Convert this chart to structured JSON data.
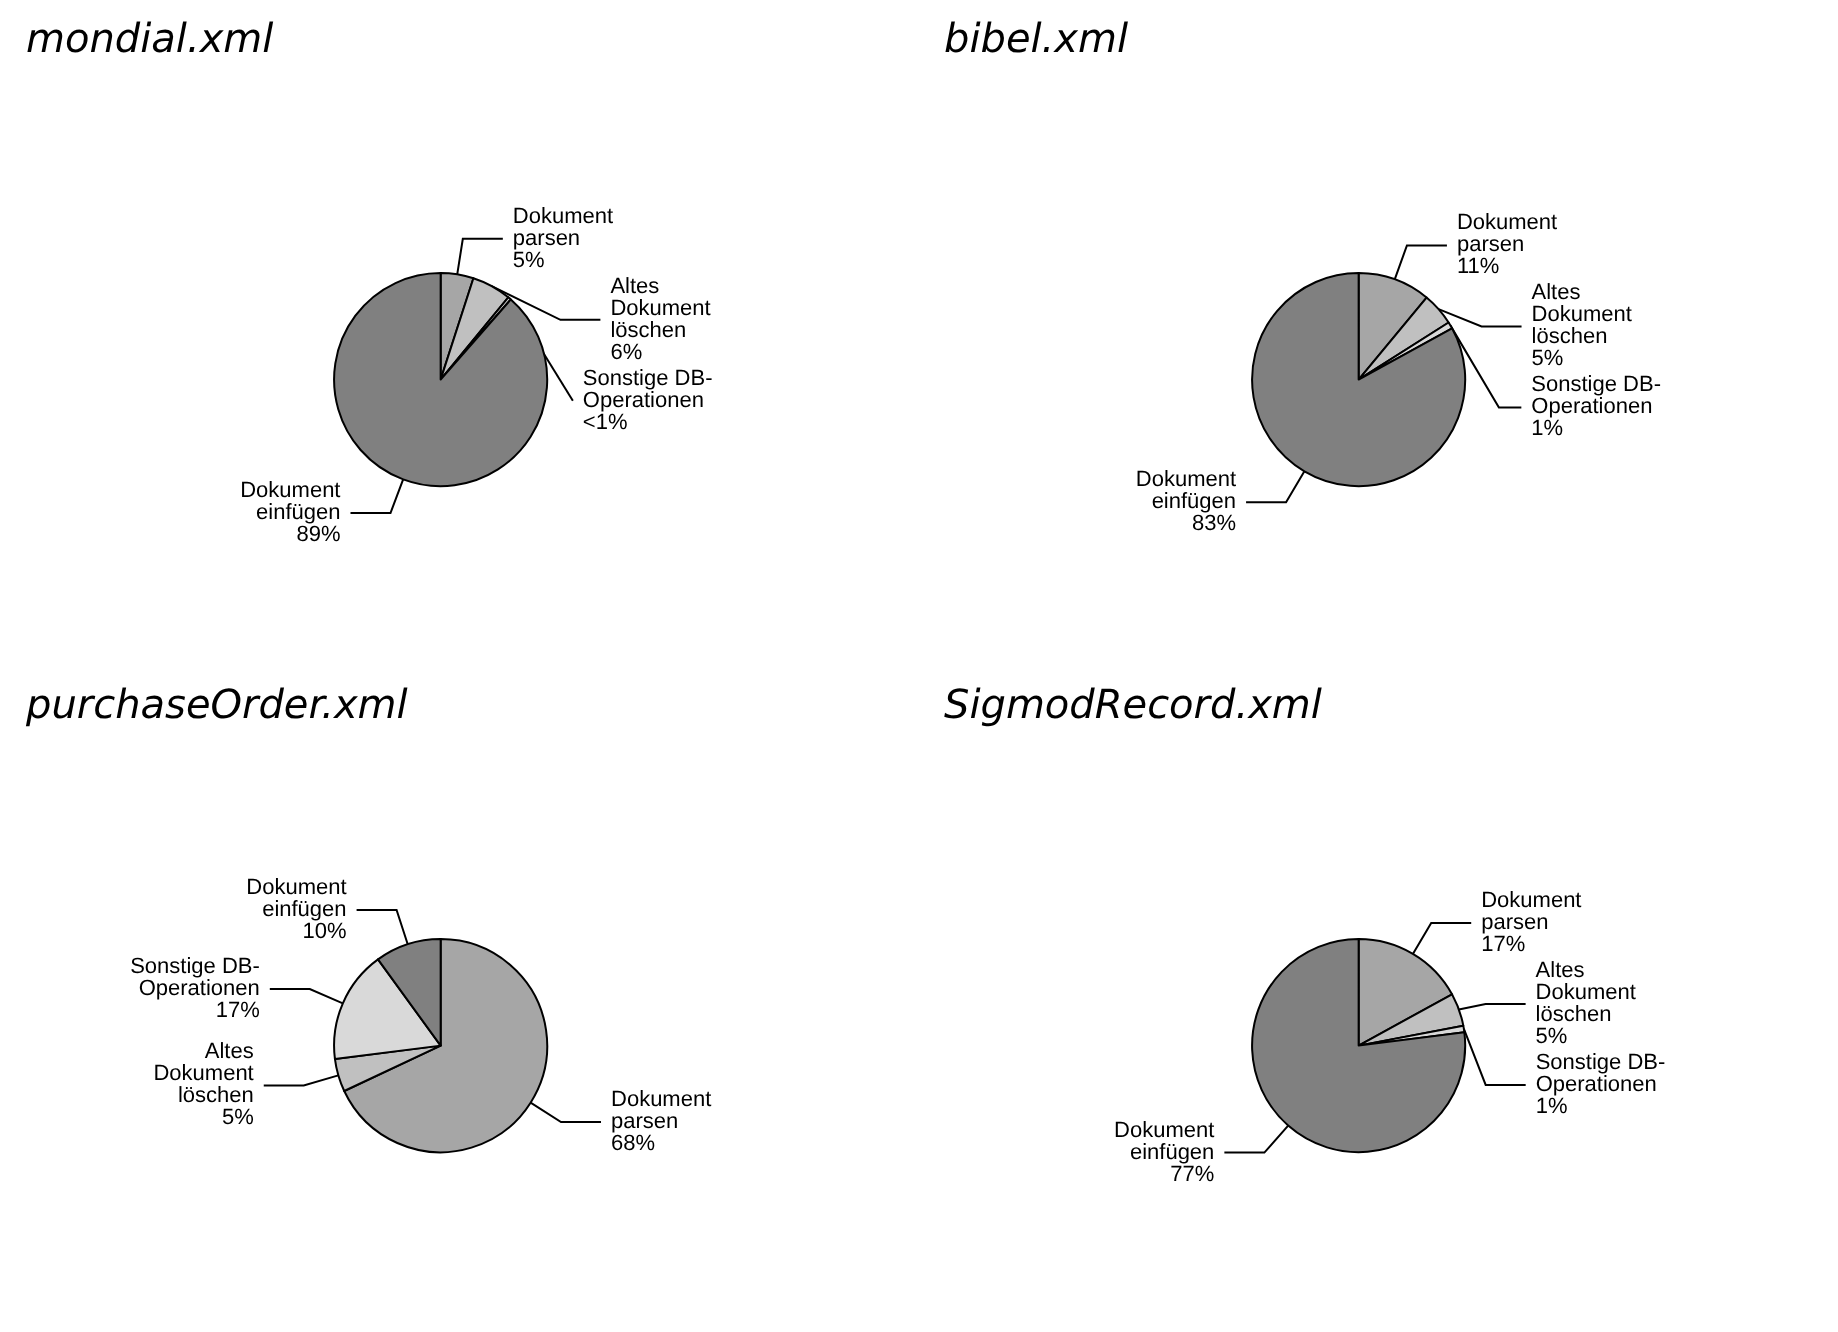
{
  "chart_data": [
    {
      "type": "pie",
      "title": "mondial.xml",
      "categories": [
        "Dokument parsen",
        "Altes Dokument löschen",
        "Sonstige DB-Operationen",
        "Dokument einfügen"
      ],
      "values": [
        5,
        6,
        0.5,
        89
      ],
      "value_labels": [
        "5%",
        "6%",
        "<1%",
        "89%"
      ],
      "colors": [
        "#a6a6a6",
        "#c0c0c0",
        "#d9d9d9",
        "#808080"
      ],
      "legend": false
    },
    {
      "type": "pie",
      "title": "bibel.xml",
      "categories": [
        "Dokument parsen",
        "Altes Dokument löschen",
        "Sonstige DB-Operationen",
        "Dokument einfügen"
      ],
      "values": [
        11,
        5,
        1,
        83
      ],
      "value_labels": [
        "11%",
        "5%",
        "1%",
        "83%"
      ],
      "colors": [
        "#a6a6a6",
        "#c0c0c0",
        "#d9d9d9",
        "#808080"
      ],
      "legend": false
    },
    {
      "type": "pie",
      "title": "purchaseOrder.xml",
      "categories": [
        "Dokument parsen",
        "Altes Dokument löschen",
        "Sonstige DB-Operationen",
        "Dokument einfügen"
      ],
      "values": [
        68,
        5,
        17,
        10
      ],
      "value_labels": [
        "68%",
        "5%",
        "17%",
        "10%"
      ],
      "colors": [
        "#a6a6a6",
        "#c0c0c0",
        "#d9d9d9",
        "#808080"
      ],
      "legend": false
    },
    {
      "type": "pie",
      "title": "SigmodRecord.xml",
      "categories": [
        "Dokument parsen",
        "Altes Dokument löschen",
        "Sonstige DB-Operationen",
        "Dokument einfügen"
      ],
      "values": [
        17,
        5,
        1,
        77
      ],
      "value_labels": [
        "17%",
        "5%",
        "1%",
        "77%"
      ],
      "colors": [
        "#a6a6a6",
        "#c0c0c0",
        "#d9d9d9",
        "#808080"
      ],
      "legend": false
    }
  ]
}
